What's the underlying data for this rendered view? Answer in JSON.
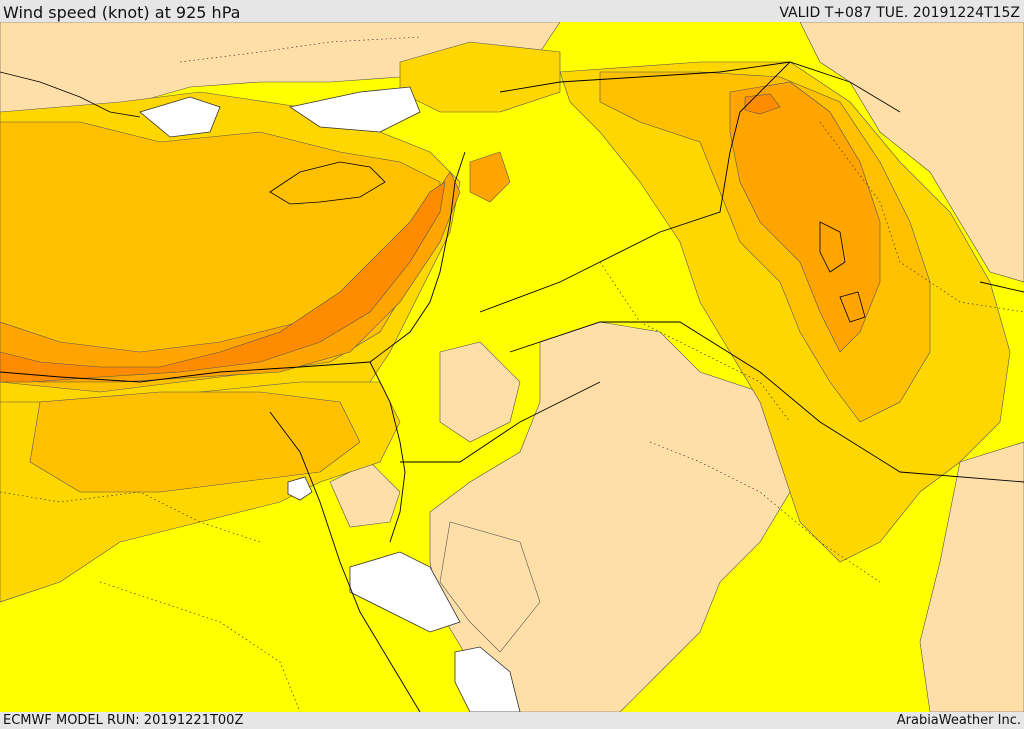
{
  "header": {
    "title": "Wind speed (knot) at 925 hPa",
    "valid_time": "VALID T+087 TUE. 20191224T15Z"
  },
  "footer": {
    "model_run": "ECMWF MODEL RUN: 20191221T00Z",
    "credit": "ArabiaWeather Inc."
  },
  "colors": {
    "weak_wind": "#ffdfa8",
    "yellow": "#ffff00",
    "gold": "#ffd700",
    "amber": "#ffc000",
    "orange": "#ffa500",
    "dark_orange": "#ff8c00",
    "missing": "#ffffff",
    "border": "#000000"
  }
}
